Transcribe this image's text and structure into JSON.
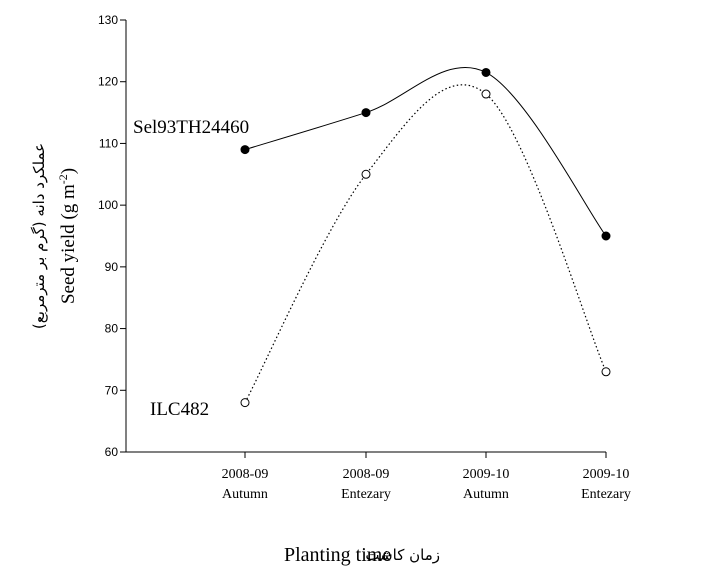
{
  "chart_data": {
    "type": "line",
    "categories": [
      [
        "2008-09",
        "Autumn"
      ],
      [
        "2008-09",
        "Entezary"
      ],
      [
        "2009-10",
        "Autumn"
      ],
      [
        "2009-10",
        "Entezary"
      ]
    ],
    "series": [
      {
        "name": "Sel93TH24460",
        "values": [
          109,
          115,
          121.5,
          95
        ],
        "marker": "filled-circle",
        "line": "solid",
        "color": "#000000"
      },
      {
        "name": "ILC482",
        "values": [
          68,
          105,
          118,
          73
        ],
        "marker": "open-circle",
        "line": "dotted",
        "color": "#000000"
      }
    ],
    "ylim": [
      60,
      130
    ],
    "yticks": [
      60,
      70,
      80,
      90,
      100,
      110,
      120,
      130
    ],
    "ylabel": "Seed yield (g m-2)",
    "ylabel_fa": "عملکرد دانه (گرم بر مترمربع)",
    "xlabel": "Planting time",
    "xlabel_fa": "زمان کاشت",
    "grid": false
  }
}
